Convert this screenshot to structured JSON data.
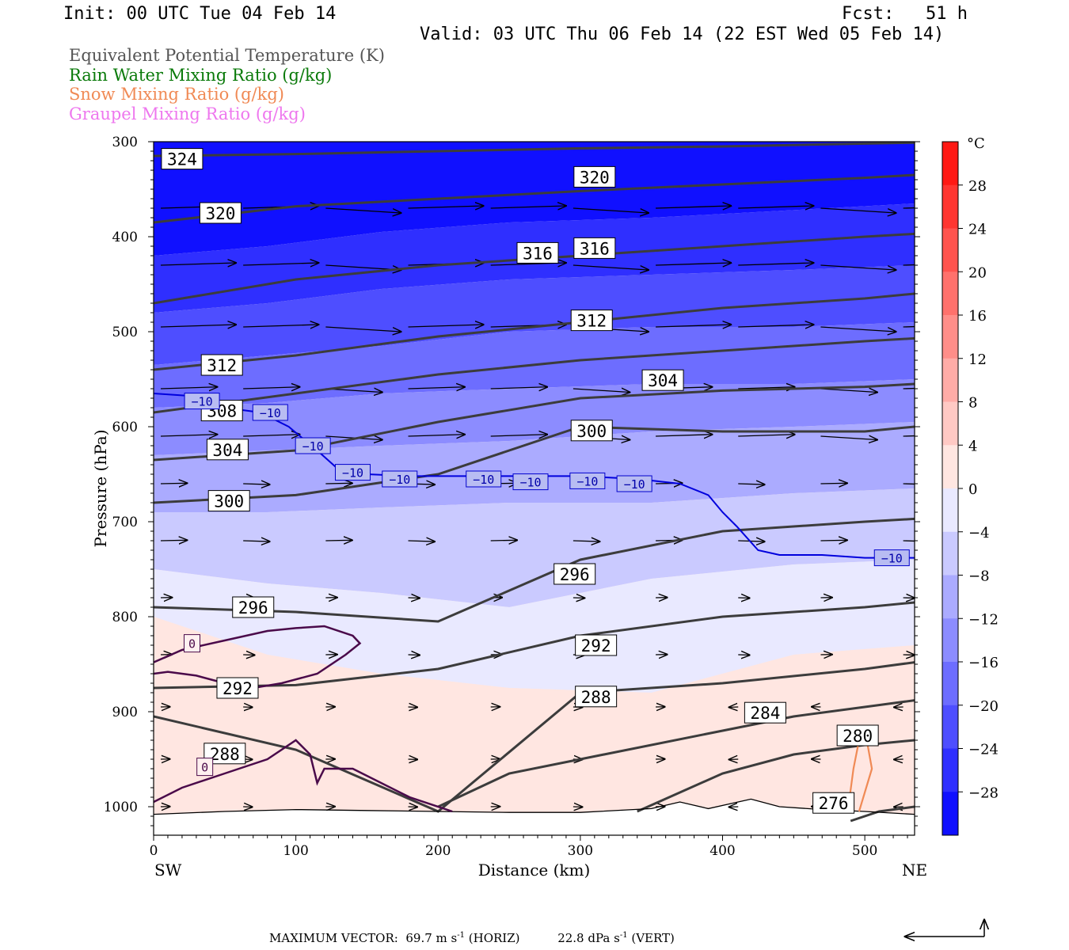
{
  "header": {
    "init": "Init: 00 UTC Tue 04 Feb 14",
    "fcst": "Fcst:   51 h",
    "valid": "Valid: 03 UTC Thu 06 Feb 14 (22 EST Wed 05 Feb 14)"
  },
  "legend": [
    {
      "label": "Equivalent Potential Temperature (K)",
      "color": "#555555"
    },
    {
      "label": "Rain Water Mixing Ratio (g/kg)",
      "color": "#0a7a0a"
    },
    {
      "label": "Snow Mixing Ratio (g/kg)",
      "color": "#f08a55"
    },
    {
      "label": "Graupel Mixing Ratio (g/kg)",
      "color": "#ee77ee"
    }
  ],
  "footer": {
    "max_vector_label": "MAXIMUM VECTOR:",
    "horiz_value": "69.7 m s",
    "horiz_unit": "(HORIZ)",
    "vert_value": "22.8 dPa s",
    "vert_unit": "(VERT)",
    "exponent": "-1"
  },
  "chart_data": {
    "type": "cross-section",
    "xlabel": "Distance (km)",
    "ylabel": "Pressure (hPa)",
    "x_ticks": [
      0,
      100,
      200,
      300,
      400,
      500
    ],
    "y_ticks": [
      300,
      400,
      500,
      600,
      700,
      800,
      900,
      1000
    ],
    "xlim": [
      0,
      535
    ],
    "ylim": [
      300,
      1030
    ],
    "x_end_labels": {
      "left": "SW",
      "right": "NE"
    },
    "colorbar": {
      "unit": "°C",
      "ticks": [
        28,
        24,
        20,
        16,
        12,
        8,
        4,
        0,
        -4,
        -8,
        -12,
        -16,
        -20,
        -24,
        -28
      ],
      "range": [
        -32,
        32
      ]
    },
    "temperature_fill": [
      {
        "x": [
          0,
          80,
          160,
          250,
          350,
          450,
          535
        ],
        "p": [
          300,
          300,
          300,
          300,
          300,
          300,
          300
        ],
        "t": -32
      },
      {
        "x": [
          0,
          80,
          160,
          250,
          350,
          450,
          535
        ],
        "p": [
          420,
          410,
          395,
          385,
          380,
          372,
          365
        ],
        "t": -28
      },
      {
        "x": [
          0,
          80,
          160,
          250,
          350,
          450,
          535
        ],
        "p": [
          480,
          470,
          455,
          445,
          440,
          435,
          430
        ],
        "t": -24
      },
      {
        "x": [
          0,
          80,
          160,
          250,
          350,
          450,
          535
        ],
        "p": [
          535,
          525,
          515,
          500,
          495,
          495,
          490
        ],
        "t": -20
      },
      {
        "x": [
          0,
          80,
          160,
          250,
          350,
          450,
          535
        ],
        "p": [
          580,
          575,
          565,
          560,
          555,
          555,
          550
        ],
        "t": -16
      },
      {
        "x": [
          0,
          80,
          160,
          250,
          350,
          450,
          535
        ],
        "p": [
          630,
          625,
          620,
          615,
          605,
          600,
          595
        ],
        "t": -12
      },
      {
        "x": [
          0,
          80,
          160,
          250,
          350,
          450,
          535
        ],
        "p": [
          690,
          690,
          685,
          680,
          680,
          670,
          665
        ],
        "t": -8
      },
      {
        "x": [
          0,
          80,
          160,
          250,
          350,
          450,
          535
        ],
        "p": [
          750,
          765,
          775,
          790,
          760,
          745,
          740
        ],
        "t": -4
      },
      {
        "x": [
          0,
          80,
          160,
          250,
          350,
          450,
          535
        ],
        "p": [
          800,
          840,
          860,
          875,
          880,
          840,
          830
        ],
        "t": 0
      }
    ],
    "theta_e_contours": [
      {
        "value": 324,
        "x": [
          0,
          100,
          200,
          300,
          400,
          500,
          535
        ],
        "p": [
          315,
          313,
          310,
          307,
          305,
          302,
          301
        ]
      },
      {
        "value": 320,
        "x": [
          0,
          100,
          200,
          300,
          400,
          500,
          535
        ],
        "p": [
          385,
          368,
          360,
          352,
          345,
          338,
          335
        ]
      },
      {
        "value": 316,
        "x": [
          0,
          100,
          200,
          300,
          400,
          500,
          535
        ],
        "p": [
          470,
          445,
          430,
          420,
          410,
          400,
          397
        ]
      },
      {
        "value": 312,
        "x": [
          0,
          100,
          200,
          300,
          400,
          500,
          535
        ],
        "p": [
          540,
          525,
          505,
          490,
          475,
          465,
          460
        ]
      },
      {
        "value": 308,
        "x": [
          0,
          100,
          200,
          300,
          400,
          500,
          535
        ],
        "p": [
          585,
          565,
          545,
          530,
          520,
          510,
          507
        ]
      },
      {
        "value": 304,
        "x": [
          0,
          100,
          200,
          300,
          400,
          500,
          535
        ],
        "p": [
          635,
          625,
          595,
          570,
          562,
          558,
          555
        ]
      },
      {
        "value": 300,
        "x": [
          0,
          100,
          200,
          300,
          400,
          500,
          535
        ],
        "p": [
          680,
          672,
          650,
          600,
          605,
          605,
          600
        ]
      },
      {
        "value": 296,
        "x": [
          0,
          100,
          200,
          300,
          400,
          500,
          535
        ],
        "p": [
          790,
          795,
          805,
          740,
          710,
          700,
          697
        ]
      },
      {
        "value": 292,
        "x": [
          0,
          100,
          200,
          300,
          400,
          500,
          535
        ],
        "p": [
          875,
          872,
          855,
          820,
          800,
          790,
          785
        ]
      },
      {
        "value": 288,
        "x": [
          0,
          100,
          200,
          300,
          400,
          500,
          535
        ],
        "p": [
          905,
          940,
          1005,
          880,
          870,
          855,
          848
        ]
      },
      {
        "value": 284,
        "x": [
          200,
          250,
          300,
          400,
          450,
          500,
          535
        ],
        "p": [
          1000,
          965,
          950,
          920,
          905,
          895,
          888
        ]
      },
      {
        "value": 280,
        "x": [
          340,
          400,
          450,
          500,
          535
        ],
        "p": [
          1005,
          965,
          945,
          935,
          930
        ]
      },
      {
        "value": 276,
        "x": [
          490,
          510,
          535
        ],
        "p": [
          1015,
          1005,
          1000
        ]
      }
    ],
    "theta_e_labels": [
      {
        "text": "324",
        "x": 20,
        "p": 318
      },
      {
        "text": "320",
        "x": 47,
        "p": 375
      },
      {
        "text": "320",
        "x": 310,
        "p": 337
      },
      {
        "text": "316",
        "x": 270,
        "p": 417
      },
      {
        "text": "316",
        "x": 310,
        "p": 412
      },
      {
        "text": "312",
        "x": 48,
        "p": 535
      },
      {
        "text": "312",
        "x": 308,
        "p": 488
      },
      {
        "text": "308",
        "x": 48,
        "p": 583
      },
      {
        "text": "304",
        "x": 52,
        "p": 624
      },
      {
        "text": "304",
        "x": 358,
        "p": 551
      },
      {
        "text": "300",
        "x": 53,
        "p": 678
      },
      {
        "text": "300",
        "x": 308,
        "p": 604
      },
      {
        "text": "296",
        "x": 70,
        "p": 790
      },
      {
        "text": "296",
        "x": 296,
        "p": 755
      },
      {
        "text": "292",
        "x": 59,
        "p": 875
      },
      {
        "text": "292",
        "x": 311,
        "p": 830
      },
      {
        "text": "288",
        "x": 50,
        "p": 944
      },
      {
        "text": "288",
        "x": 311,
        "p": 884
      },
      {
        "text": "284",
        "x": 430,
        "p": 901
      },
      {
        "text": "280",
        "x": 495,
        "p": 925
      },
      {
        "text": "276",
        "x": 478,
        "p": 996
      }
    ],
    "isotherm_minus10": {
      "value": -10,
      "x": [
        0,
        30,
        50,
        75,
        95,
        115,
        130,
        150,
        180,
        220,
        260,
        300,
        340,
        370,
        390,
        400,
        410,
        425,
        440,
        470,
        500,
        535
      ],
      "p": [
        565,
        568,
        580,
        585,
        600,
        625,
        645,
        650,
        652,
        652,
        652,
        652,
        655,
        660,
        672,
        690,
        705,
        730,
        735,
        735,
        738,
        738
      ],
      "labels": [
        {
          "x": 34,
          "p": 573
        },
        {
          "x": 82,
          "p": 585
        },
        {
          "x": 112,
          "p": 620
        },
        {
          "x": 140,
          "p": 648
        },
        {
          "x": 173,
          "p": 655
        },
        {
          "x": 232,
          "p": 655
        },
        {
          "x": 265,
          "p": 658
        },
        {
          "x": 305,
          "p": 657
        },
        {
          "x": 338,
          "p": 660
        },
        {
          "x": 519,
          "p": 738
        }
      ]
    },
    "rain_zero_contours": [
      {
        "x": [
          0,
          20,
          50,
          80,
          100,
          120,
          140,
          145,
          135,
          115,
          90,
          70,
          50,
          30,
          10,
          0
        ],
        "p": [
          848,
          835,
          825,
          815,
          812,
          810,
          820,
          828,
          840,
          860,
          870,
          875,
          870,
          862,
          858,
          860
        ]
      },
      {
        "x": [
          0,
          20,
          50,
          80,
          100,
          110,
          115,
          120,
          140,
          180,
          210
        ],
        "p": [
          995,
          980,
          965,
          950,
          930,
          945,
          975,
          960,
          960,
          990,
          1005
        ]
      }
    ],
    "rain_labels": [
      {
        "text": "0",
        "x": 27,
        "p": 828
      },
      {
        "text": "0",
        "x": 36,
        "p": 958
      }
    ],
    "snow_contour": {
      "x": [
        488,
        492,
        496,
        502,
        505,
        500,
        496
      ],
      "p": 0,
      "px": [
        1005,
        960,
        930,
        935,
        960,
        985,
        1005
      ]
    },
    "terrain": {
      "x": [
        0,
        50,
        100,
        150,
        200,
        250,
        300,
        350,
        370,
        390,
        420,
        440,
        470,
        500,
        535
      ],
      "p": [
        1008,
        1005,
        1003,
        1004,
        1005,
        1006,
        1006,
        1002,
        995,
        1002,
        992,
        1000,
        1003,
        1005,
        1008
      ]
    },
    "wind_vectors_note": "southwesterly flow aloft, weak near surface"
  }
}
